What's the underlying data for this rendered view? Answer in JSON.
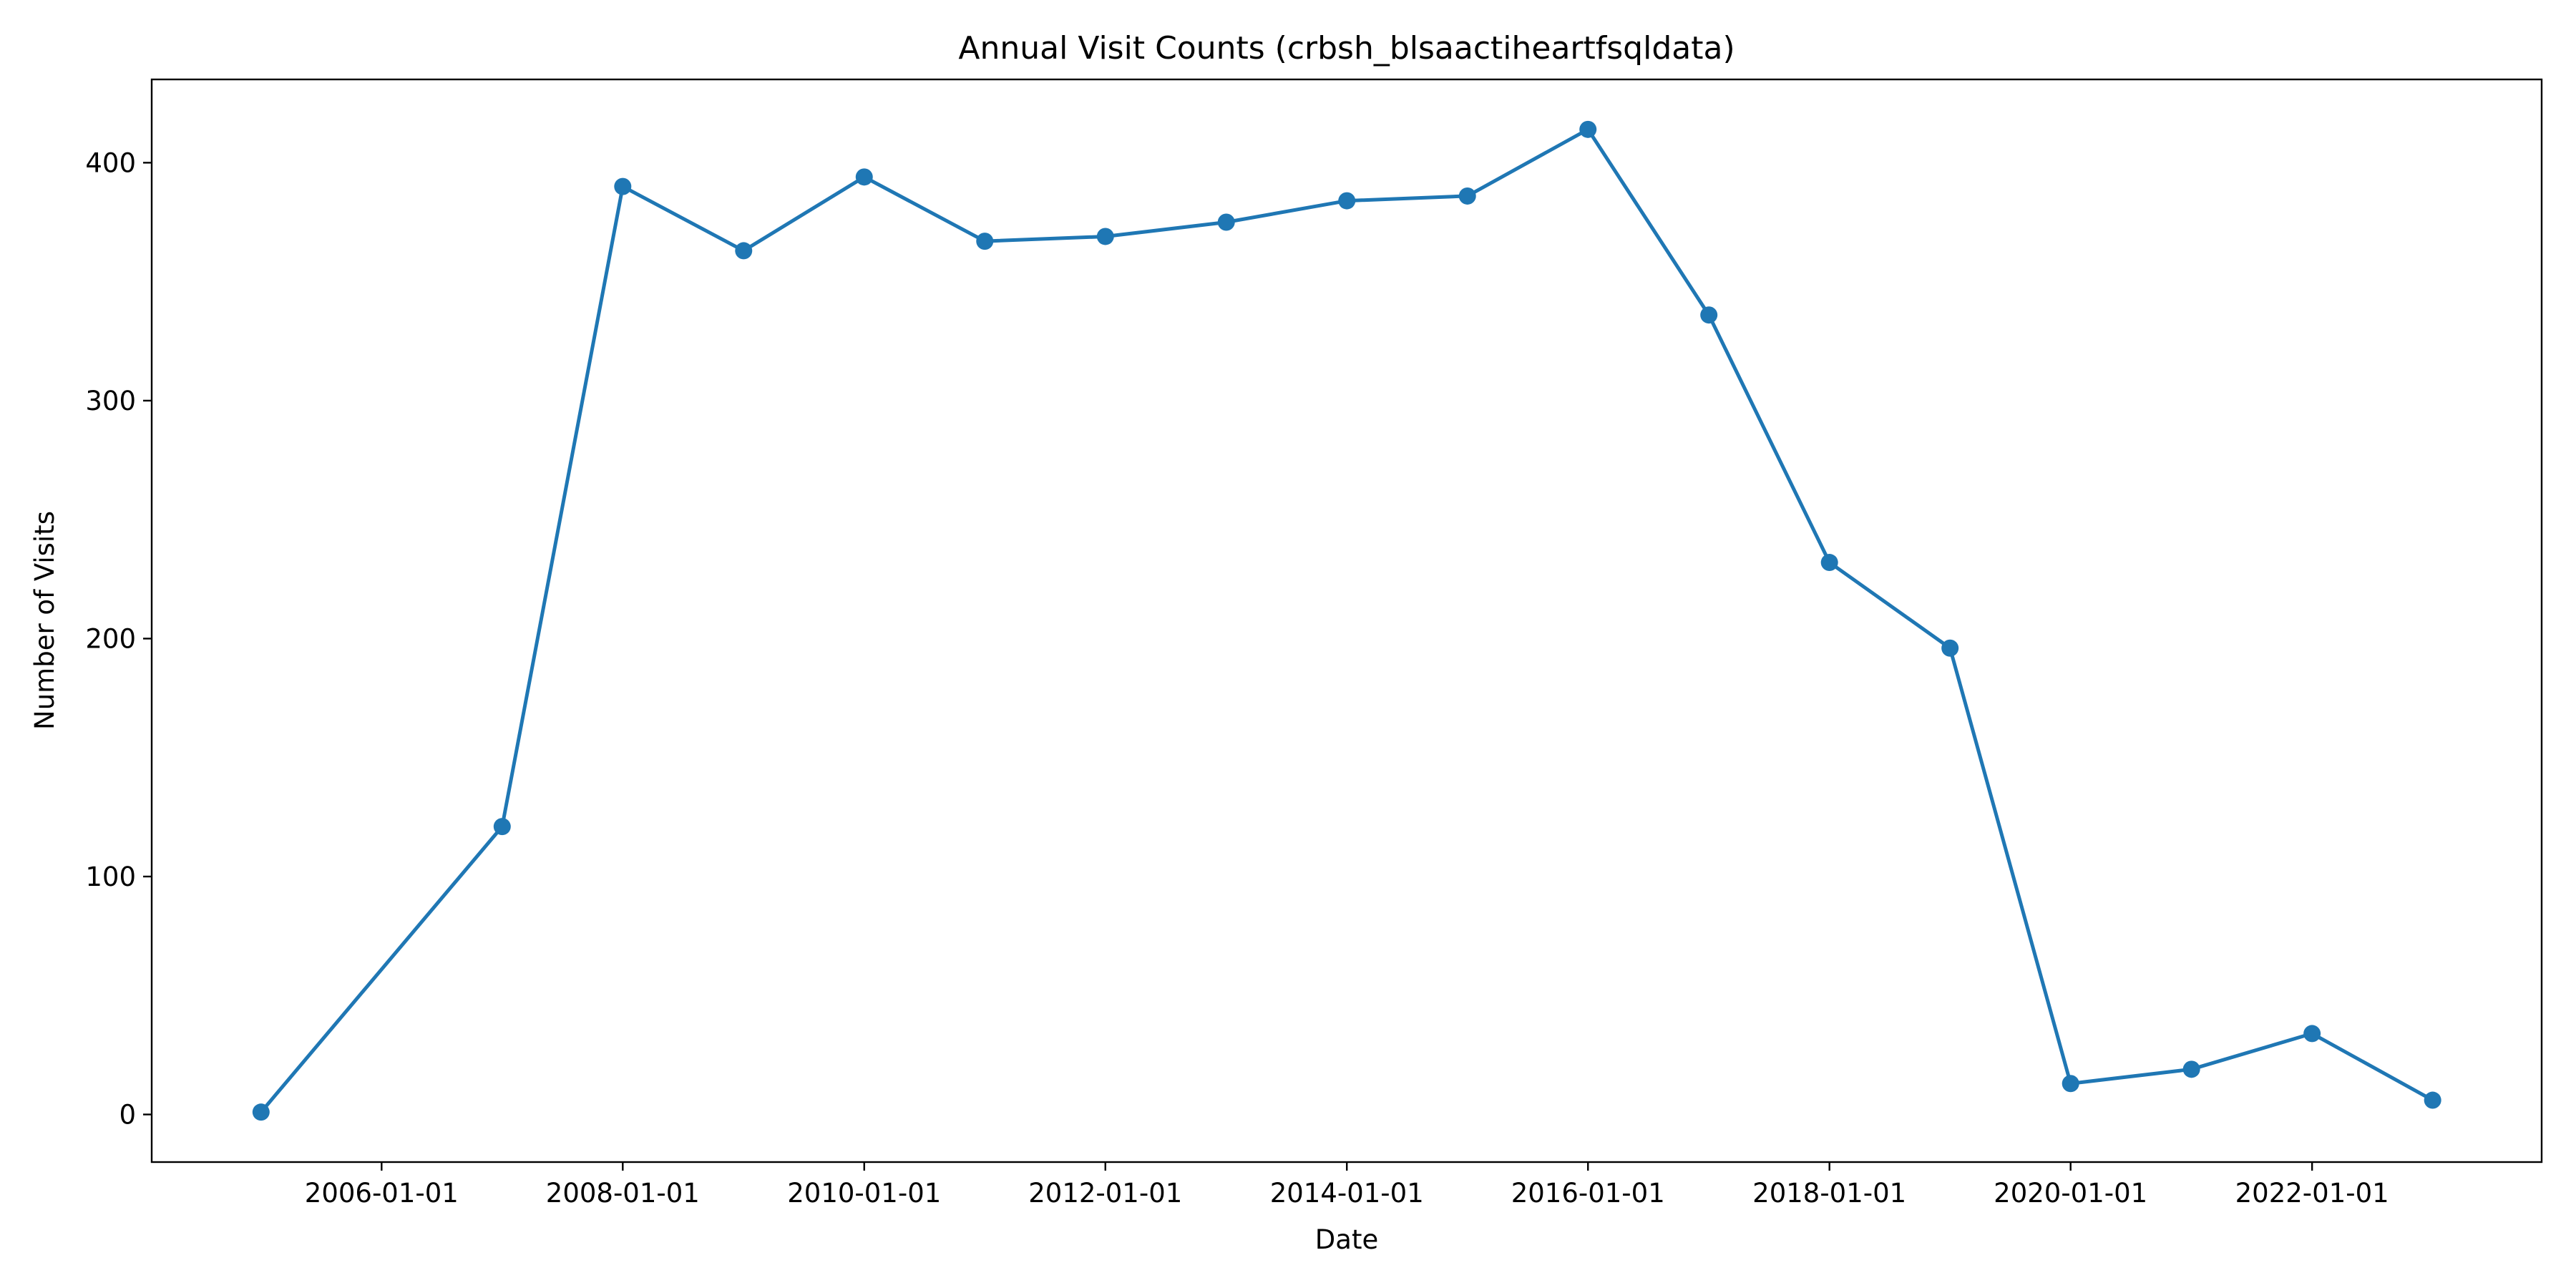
{
  "chart_data": {
    "type": "line",
    "title": "Annual Visit Counts (crbsh_blsaactiheartfsqldata)",
    "xlabel": "Date",
    "ylabel": "Number of Visits",
    "x": [
      "2005-01-01",
      "2007-01-01",
      "2008-01-01",
      "2009-01-01",
      "2010-01-01",
      "2011-01-01",
      "2012-01-01",
      "2013-01-01",
      "2014-01-01",
      "2015-01-01",
      "2016-01-01",
      "2017-01-01",
      "2018-01-01",
      "2019-01-01",
      "2020-01-01",
      "2021-01-01",
      "2022-01-01",
      "2023-01-01"
    ],
    "series": [
      {
        "values": [
          1,
          121,
          390,
          363,
          394,
          367,
          369,
          375,
          384,
          386,
          414,
          336,
          232,
          196,
          13,
          19,
          34,
          6
        ],
        "color": "#1f77b4"
      }
    ],
    "xlim": [
      "2004-02-05",
      "2023-11-27"
    ],
    "ylim": [
      -20,
      435
    ],
    "x_ticks": [
      "2006-01-01",
      "2008-01-01",
      "2010-01-01",
      "2012-01-01",
      "2014-01-01",
      "2016-01-01",
      "2018-01-01",
      "2020-01-01",
      "2022-01-01"
    ],
    "y_ticks": [
      0,
      100,
      200,
      300,
      400
    ],
    "grid": false,
    "markers": true
  }
}
